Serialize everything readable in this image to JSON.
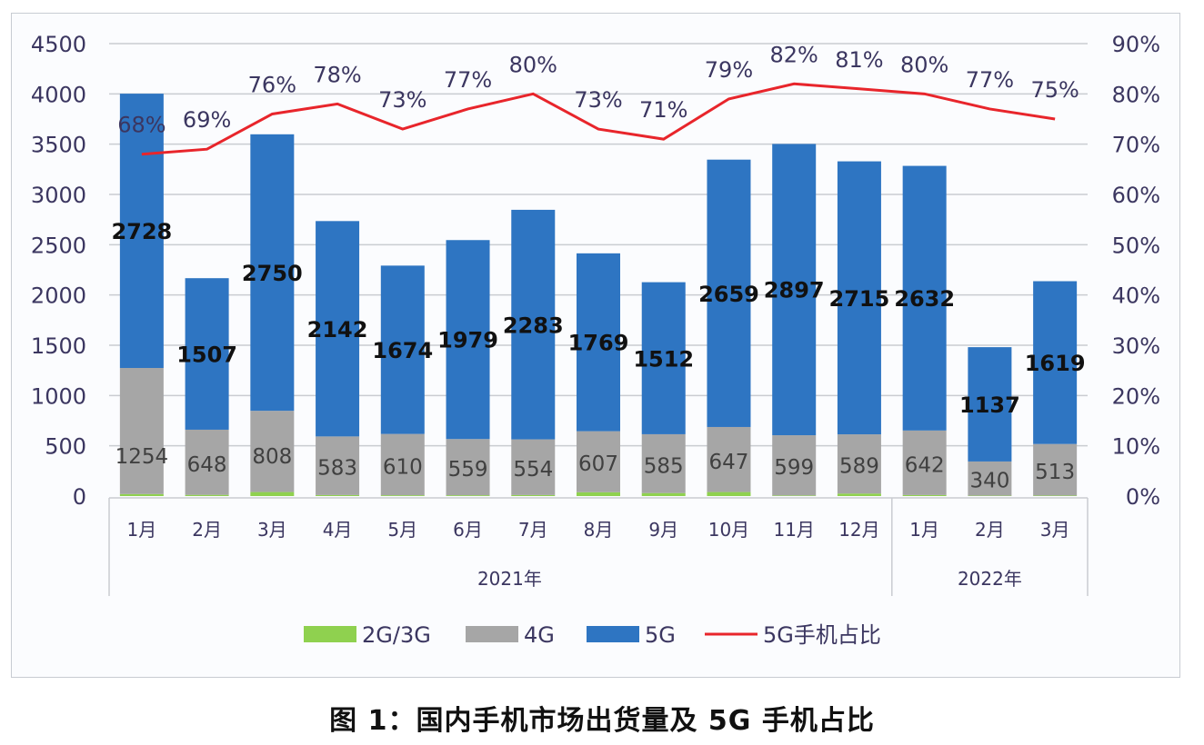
{
  "caption": "图 1：国内手机市场出货量及 5G 手机占比",
  "chart_data": {
    "type": "bar",
    "subtype": "stacked_bar_with_line",
    "title": "图 1：国内手机市场出货量及 5G 手机占比",
    "categories": [
      "1月",
      "2月",
      "3月",
      "4月",
      "5月",
      "6月",
      "7月",
      "8月",
      "9月",
      "10月",
      "11月",
      "12月",
      "1月",
      "2月",
      "3月"
    ],
    "groups": [
      {
        "label": "2021年",
        "start": 0,
        "end": 11
      },
      {
        "label": "2022年",
        "start": 12,
        "end": 14
      }
    ],
    "series": [
      {
        "name": "2G/3G",
        "type": "bar",
        "axis": "left",
        "color": "#8fd14f",
        "values": [
          20,
          12,
          40,
          10,
          8,
          8,
          10,
          38,
          30,
          40,
          6,
          25,
          10,
          4,
          5
        ]
      },
      {
        "name": "4G",
        "type": "bar",
        "axis": "left",
        "color": "#a6a6a6",
        "values": [
          1254,
          648,
          808,
          583,
          610,
          559,
          554,
          607,
          585,
          647,
          599,
          589,
          642,
          340,
          513
        ]
      },
      {
        "name": "5G",
        "type": "bar",
        "axis": "left",
        "color": "#2e75c2",
        "values": [
          2728,
          1507,
          2750,
          2142,
          1674,
          1979,
          2283,
          1769,
          1512,
          2659,
          2897,
          2715,
          2632,
          1137,
          1619
        ]
      },
      {
        "name": "5G手机占比",
        "type": "line",
        "axis": "right",
        "color": "#e8252b",
        "values": [
          68,
          69,
          76,
          78,
          73,
          77,
          80,
          73,
          71,
          79,
          82,
          81,
          80,
          77,
          75
        ],
        "labels": [
          "68%",
          "69%",
          "76%",
          "78%",
          "73%",
          "77%",
          "80%",
          "73%",
          "71%",
          "79%",
          "82%",
          "81%",
          "80%",
          "77%",
          "75%"
        ]
      }
    ],
    "y_left": {
      "min": 0,
      "max": 4500,
      "step": 500,
      "ticks": [
        "0",
        "500",
        "1000",
        "1500",
        "2000",
        "2500",
        "3000",
        "3500",
        "4000",
        "4500"
      ]
    },
    "y_right": {
      "min": 0,
      "max": 90,
      "step": 10,
      "ticks": [
        "0%",
        "10%",
        "20%",
        "30%",
        "40%",
        "50%",
        "60%",
        "70%",
        "80%",
        "90%"
      ]
    },
    "xlabel": "",
    "ylabel": "",
    "grid": true,
    "legend_position": "bottom",
    "legend": [
      "2G/3G",
      "4G",
      "5G",
      "5G手机占比"
    ]
  }
}
